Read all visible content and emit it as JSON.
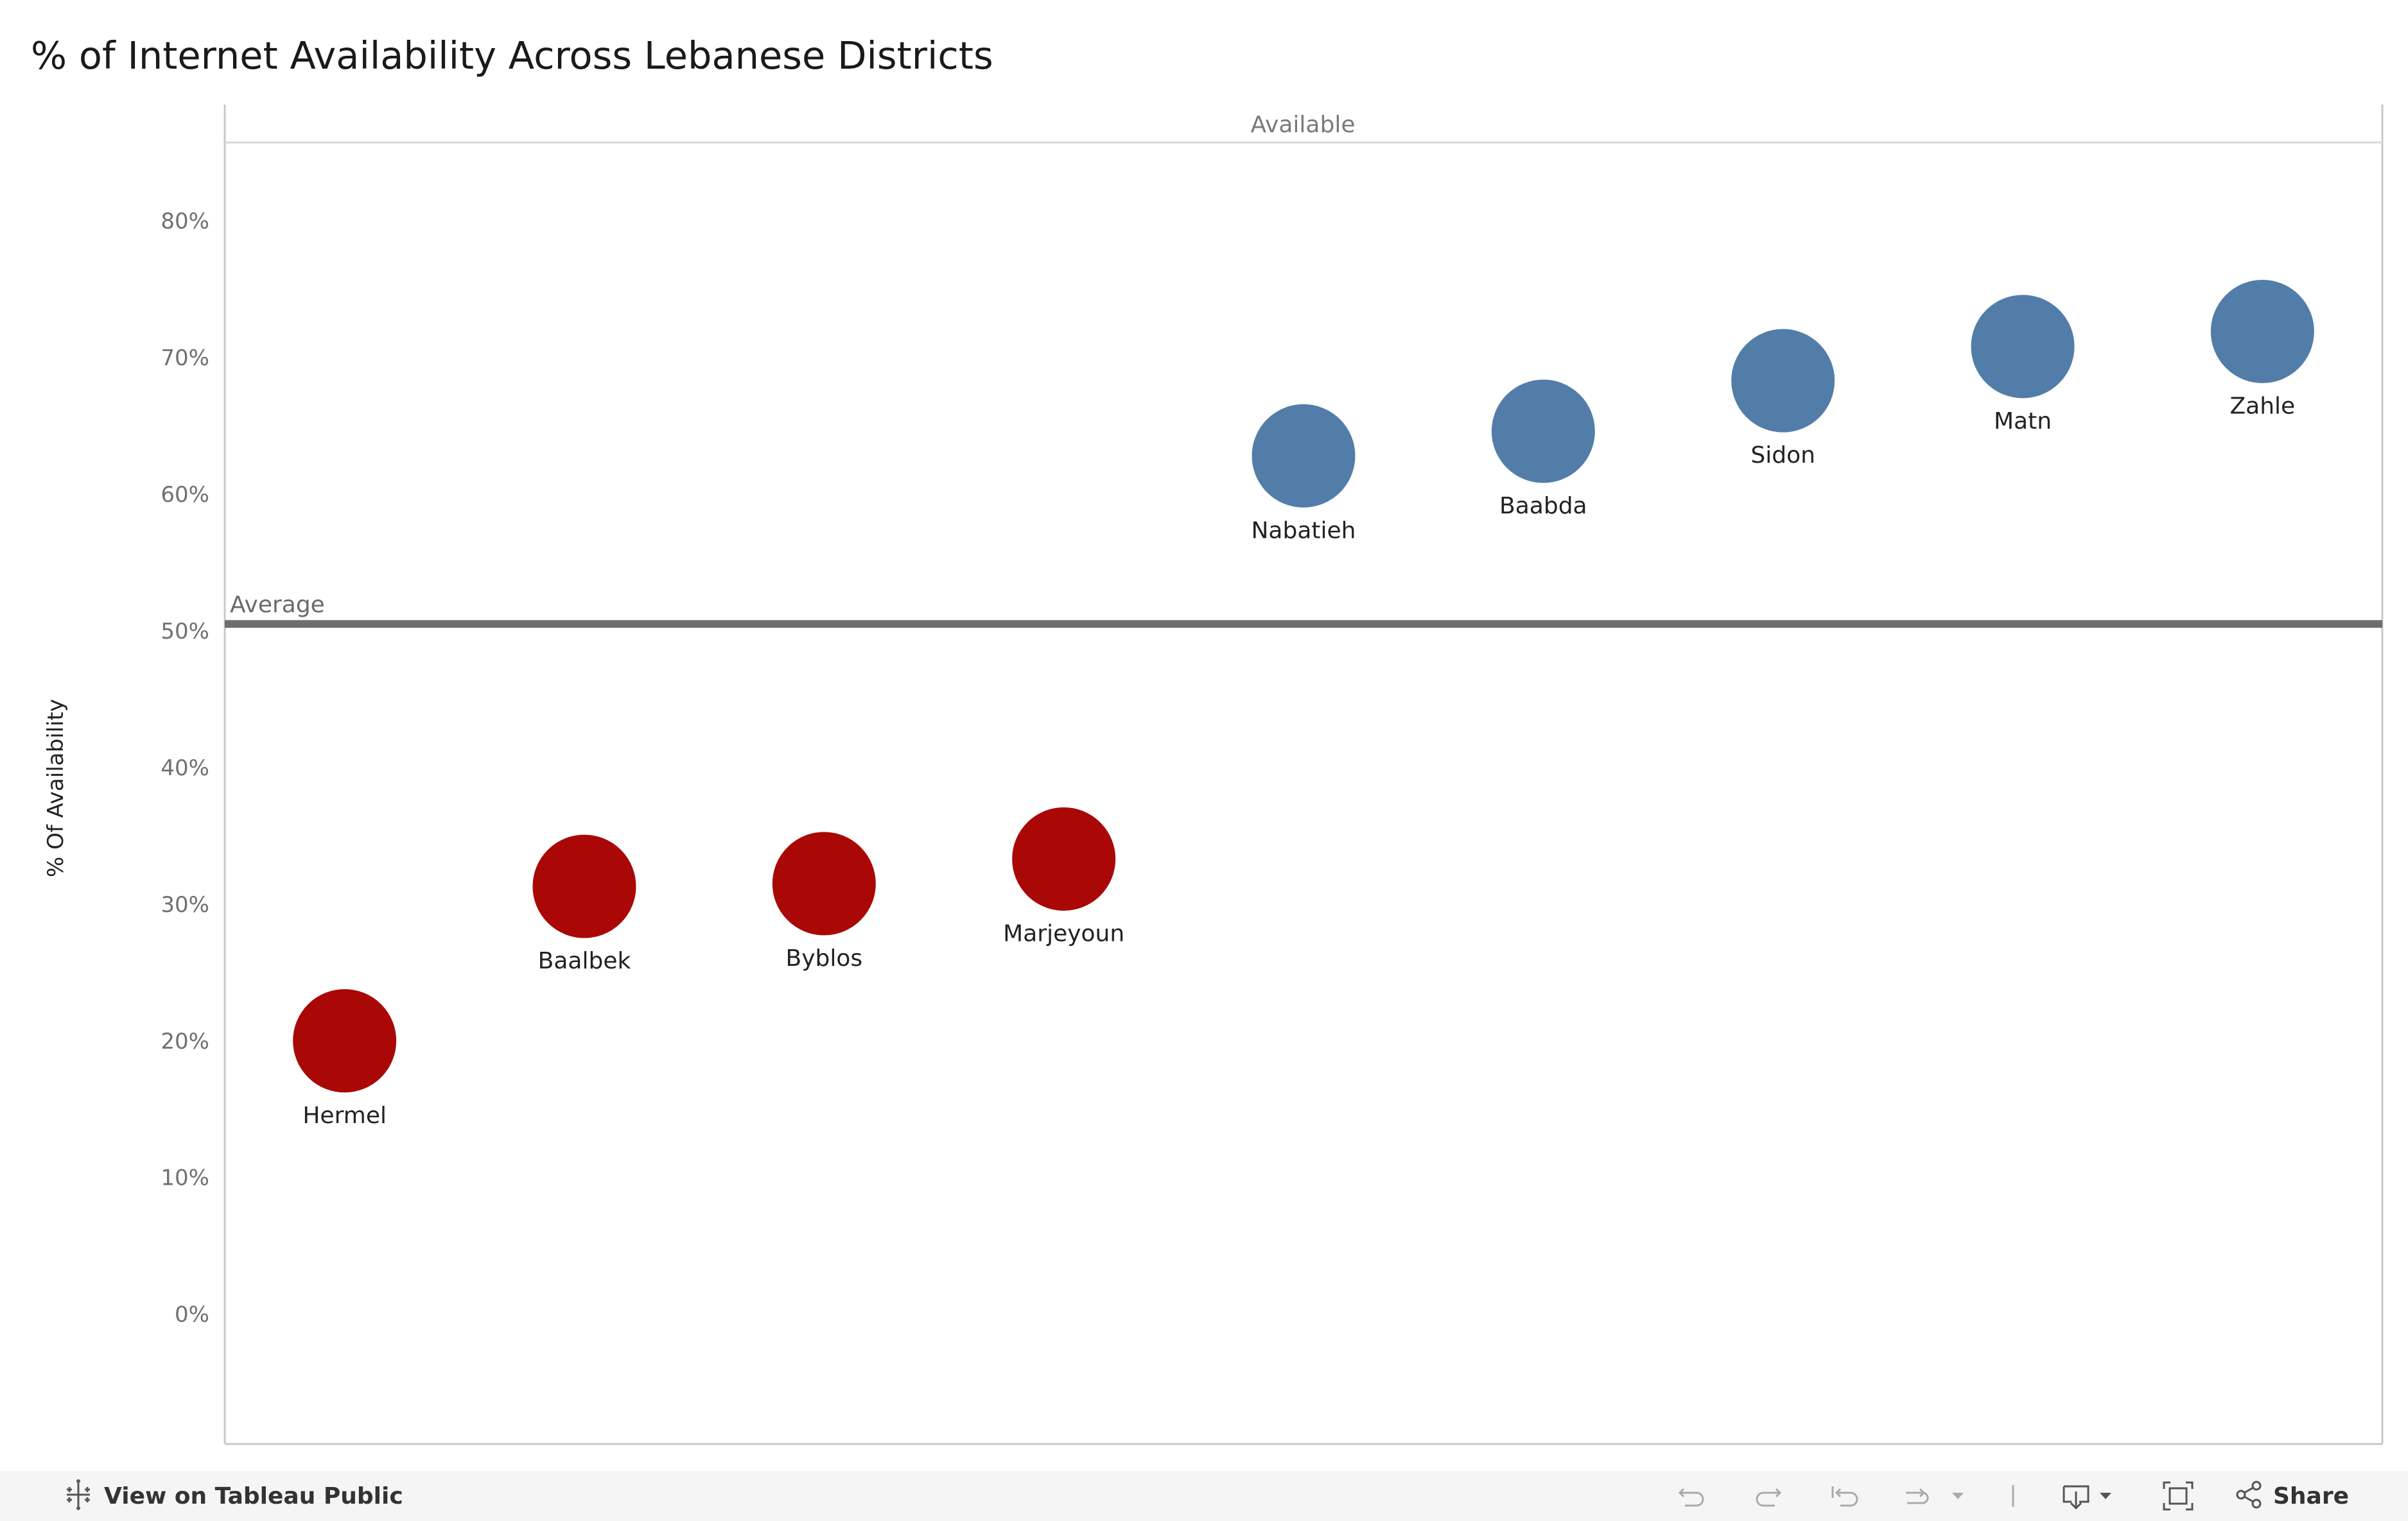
{
  "title": "% of Internet Availability Across Lebanese Districts",
  "colors": {
    "available": "#4e79a7",
    "not_available": "#a80000",
    "average_line": "#6e6e6e"
  },
  "chart_data": {
    "type": "scatter",
    "title": "% of Internet Availability Across Lebanese Districts",
    "ylabel": "% Of Availability",
    "xlabel": "",
    "column_header": "Available",
    "ylim": [
      -0.095,
      0.885
    ],
    "yticks": [
      0,
      0.1,
      0.2,
      0.3,
      0.4,
      0.5,
      0.6,
      0.7,
      0.8
    ],
    "ytick_labels": [
      "0%",
      "10%",
      "20%",
      "30%",
      "40%",
      "50%",
      "60%",
      "70%",
      "80%"
    ],
    "grid": false,
    "reference_line": {
      "label": "Average",
      "value": 0.505
    },
    "points": [
      {
        "name": "Hermel",
        "y": 0.2,
        "color": "#a80000"
      },
      {
        "name": "Baalbek",
        "y": 0.313,
        "color": "#a80000"
      },
      {
        "name": "Byblos",
        "y": 0.315,
        "color": "#a80000"
      },
      {
        "name": "Marjeyoun",
        "y": 0.333,
        "color": "#a80000"
      },
      {
        "name": "Nabatieh",
        "y": 0.628,
        "color": "#4e79a7"
      },
      {
        "name": "Baabda",
        "y": 0.646,
        "color": "#4e79a7"
      },
      {
        "name": "Sidon",
        "y": 0.683,
        "color": "#4e79a7"
      },
      {
        "name": "Matn",
        "y": 0.708,
        "color": "#4e79a7"
      },
      {
        "name": "Zahle",
        "y": 0.719,
        "color": "#4e79a7"
      }
    ]
  },
  "toolbar": {
    "view_on_tableau": "View on Tableau Public",
    "share": "Share",
    "icons": [
      "undo-icon",
      "redo-icon",
      "revert-icon",
      "refresh-icon",
      "pause-dropdown-icon",
      "download-icon",
      "fullscreen-icon",
      "share-icon"
    ]
  }
}
